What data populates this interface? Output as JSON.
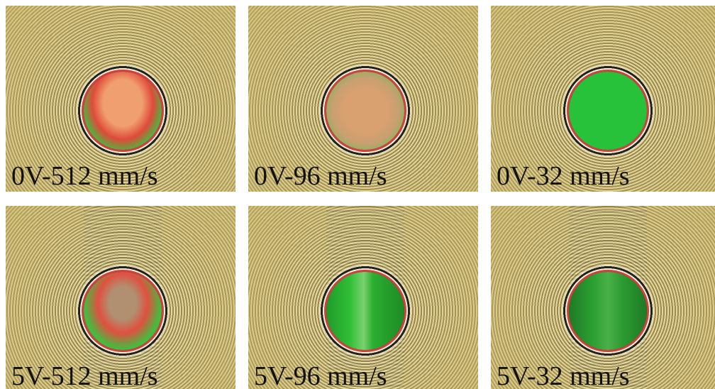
{
  "panels": [
    {
      "label": "0V-512 mm/s"
    },
    {
      "label": "0V-96 mm/s"
    },
    {
      "label": "0V-32 mm/s"
    },
    {
      "label": "5V-512 mm/s"
    },
    {
      "label": "5V-96 mm/s"
    },
    {
      "label": "5V-32 mm/s"
    }
  ]
}
